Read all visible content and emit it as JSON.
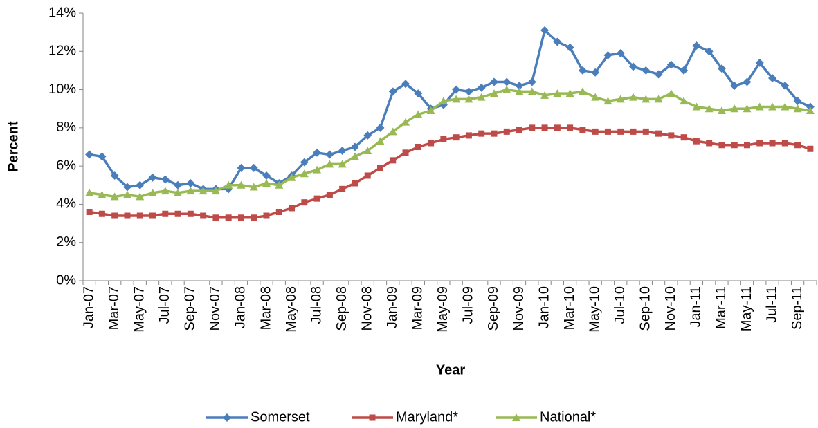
{
  "chart_data": {
    "type": "line",
    "x_label": "Year",
    "y_label": "Percent",
    "categories": [
      "Jan-07",
      null,
      "Mar-07",
      null,
      "May-07",
      null,
      "Jul-07",
      null,
      "Sep-07",
      null,
      "Nov-07",
      null,
      "Jan-08",
      null,
      "Mar-08",
      null,
      "May-08",
      null,
      "Jul-08",
      null,
      "Sep-08",
      null,
      "Nov-08",
      null,
      "Jan-09",
      null,
      "Mar-09",
      null,
      "May-09",
      null,
      "Jul-09",
      null,
      "Sep-09",
      null,
      "Nov-09",
      null,
      "Jan-10",
      null,
      "Mar-10",
      null,
      "May-10",
      null,
      "Jul-10",
      null,
      "Sep-10",
      null,
      "Nov-10",
      null,
      "Jan-11",
      null,
      "Mar-11",
      null,
      "May-11",
      null,
      "Jul-11",
      null,
      "Sep-11",
      null
    ],
    "series": [
      {
        "name": "Somerset",
        "color": "#4a7ebb",
        "marker": "diamond",
        "values": [
          6.6,
          6.5,
          5.5,
          4.9,
          5.0,
          5.4,
          5.3,
          5.0,
          5.1,
          4.8,
          4.8,
          4.8,
          5.9,
          5.9,
          5.5,
          5.1,
          5.5,
          6.2,
          6.7,
          6.6,
          6.8,
          7.0,
          7.6,
          8.0,
          9.9,
          10.3,
          9.8,
          9.0,
          9.2,
          10.0,
          9.9,
          10.1,
          10.4,
          10.4,
          10.2,
          10.4,
          13.1,
          12.5,
          12.2,
          11.0,
          10.9,
          11.8,
          11.9,
          11.2,
          11.0,
          10.8,
          11.3,
          11.0,
          12.3,
          12.0,
          11.1,
          10.2,
          10.4,
          11.4,
          10.6,
          10.2,
          9.4,
          9.1
        ]
      },
      {
        "name": "Maryland*",
        "color": "#be4b48",
        "marker": "square",
        "values": [
          3.6,
          3.5,
          3.4,
          3.4,
          3.4,
          3.4,
          3.5,
          3.5,
          3.5,
          3.4,
          3.3,
          3.3,
          3.3,
          3.3,
          3.4,
          3.6,
          3.8,
          4.1,
          4.3,
          4.5,
          4.8,
          5.1,
          5.5,
          5.9,
          6.3,
          6.7,
          7.0,
          7.2,
          7.4,
          7.5,
          7.6,
          7.7,
          7.7,
          7.8,
          7.9,
          8.0,
          8.0,
          8.0,
          8.0,
          7.9,
          7.8,
          7.8,
          7.8,
          7.8,
          7.8,
          7.7,
          7.6,
          7.5,
          7.3,
          7.2,
          7.1,
          7.1,
          7.1,
          7.2,
          7.2,
          7.2,
          7.1,
          6.9
        ]
      },
      {
        "name": "National*",
        "color": "#98b954",
        "marker": "triangle",
        "values": [
          4.6,
          4.5,
          4.4,
          4.5,
          4.4,
          4.6,
          4.7,
          4.6,
          4.7,
          4.7,
          4.7,
          5.0,
          5.0,
          4.9,
          5.1,
          5.0,
          5.4,
          5.6,
          5.8,
          6.1,
          6.1,
          6.5,
          6.8,
          7.3,
          7.8,
          8.3,
          8.7,
          8.9,
          9.4,
          9.5,
          9.5,
          9.6,
          9.8,
          10.0,
          9.9,
          9.9,
          9.7,
          9.8,
          9.8,
          9.9,
          9.6,
          9.4,
          9.5,
          9.6,
          9.5,
          9.5,
          9.8,
          9.4,
          9.1,
          9.0,
          8.9,
          9.0,
          9.0,
          9.1,
          9.1,
          9.1,
          9.0,
          8.9
        ]
      }
    ],
    "ylim": [
      0,
      14
    ],
    "yticks": [
      {
        "value": 0,
        "label": "0%"
      },
      {
        "value": 2,
        "label": "2%"
      },
      {
        "value": 4,
        "label": "4%"
      },
      {
        "value": 6,
        "label": "6%"
      },
      {
        "value": 8,
        "label": "8%"
      },
      {
        "value": 10,
        "label": "10%"
      },
      {
        "value": 12,
        "label": "12%"
      },
      {
        "value": 14,
        "label": "14%"
      }
    ],
    "grid": false,
    "legend": "bottom"
  }
}
